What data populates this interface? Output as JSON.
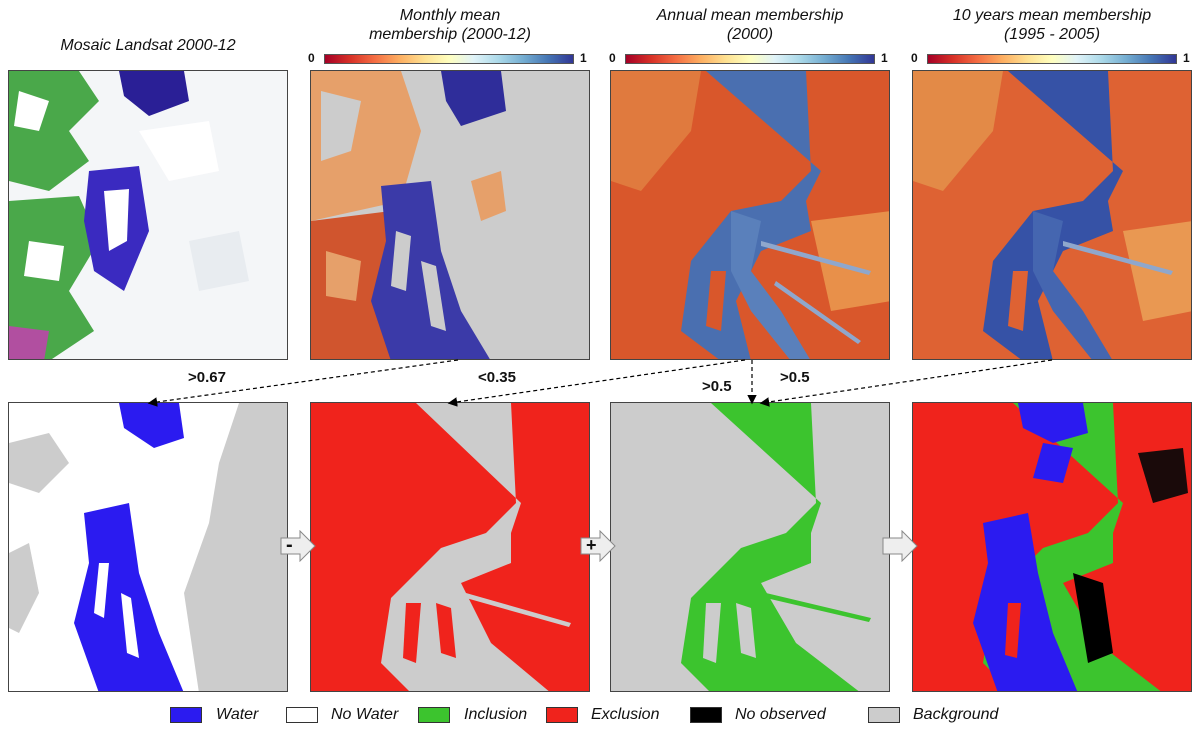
{
  "titles": {
    "mosaic": "Mosaic Landsat 2000-12",
    "monthly_l1": "Monthly mean",
    "monthly_l2": "membership (2000-12)",
    "annual_l1": "Annual mean membership",
    "annual_l2": "(2000)",
    "tenyear_l1": "10 years mean membership",
    "tenyear_l2": "(1995 - 2005)"
  },
  "colorbar": {
    "min_label": "0",
    "max_label": "1",
    "low_color": "#a50026",
    "high_color": "#313695"
  },
  "thresholds": {
    "monthly": ">0.67",
    "monthly_neg": "<0.35",
    "annual": ">0.5",
    "tenyear": ">0.5"
  },
  "operators": {
    "minus": "-",
    "plus": "+"
  },
  "legend": {
    "items": [
      {
        "label": "Water",
        "color": "#2b1bf0"
      },
      {
        "label": "No Water",
        "color": "#ffffff"
      },
      {
        "label": "Inclusion",
        "color": "#3cc42e"
      },
      {
        "label": "Exclusion",
        "color": "#f0231c"
      },
      {
        "label": "No observed",
        "color": "#000000"
      },
      {
        "label": "Background",
        "color": "#cccccc"
      }
    ]
  },
  "colors": {
    "water": "#2b1bf0",
    "inclusion": "#3cc42e",
    "exclusion": "#f0231c",
    "background": "#cccccc",
    "membership_high": "#4a6fb0",
    "membership_low": "#d9572b",
    "arrow_fill": "#eeeeee",
    "arrow_stroke": "#888888"
  }
}
